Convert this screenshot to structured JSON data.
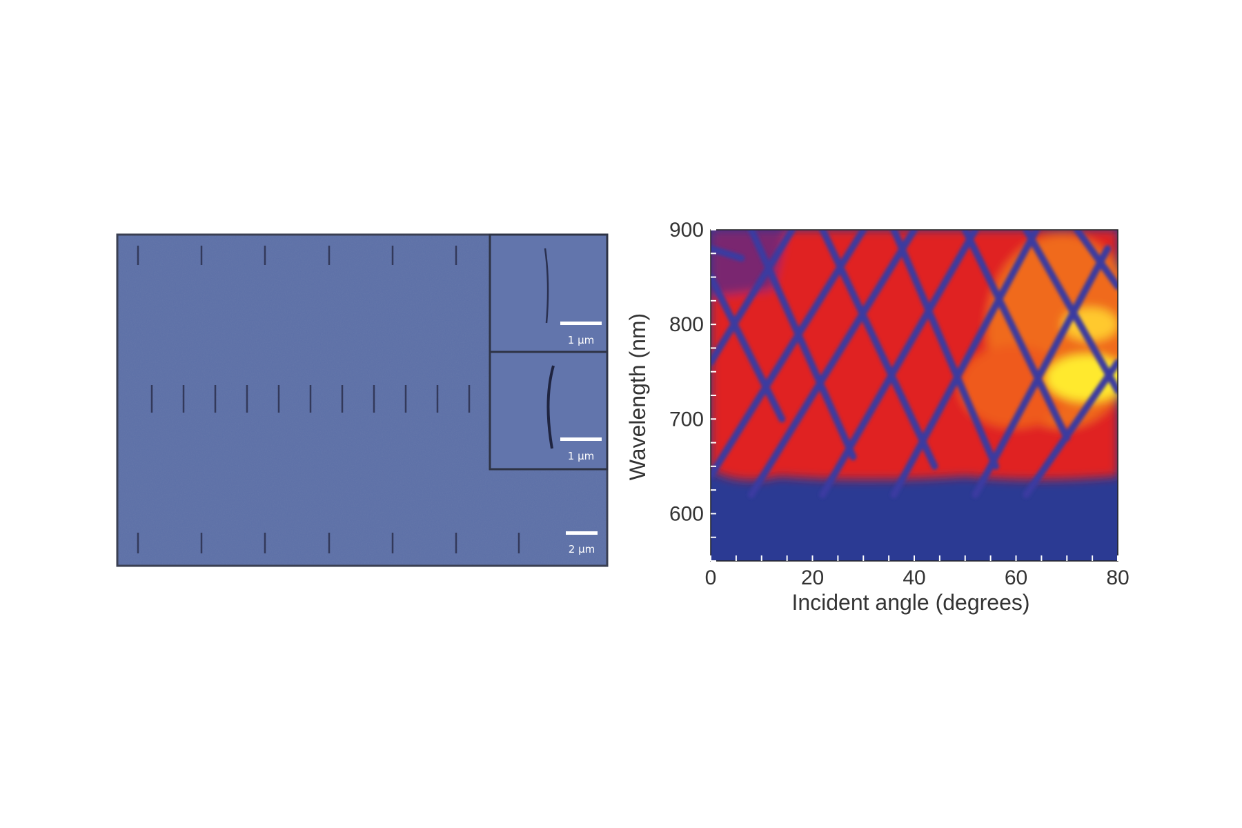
{
  "panel_a": {
    "scale_bars": [
      {
        "label": "1 μm"
      },
      {
        "label": "1 μm"
      },
      {
        "label": "2 μm"
      }
    ]
  },
  "chart_data": {
    "type": "heatmap",
    "title": "",
    "xlabel": "Incident angle (degrees)",
    "ylabel": "Wavelength (nm)",
    "xlim": [
      0,
      80
    ],
    "ylim": [
      550,
      900
    ],
    "x_ticks": [
      "0",
      "20",
      "40",
      "60",
      "80"
    ],
    "y_ticks": [
      "600",
      "700",
      "800",
      "900"
    ],
    "x_tick_values": [
      0,
      20,
      40,
      60,
      80
    ],
    "y_tick_values": [
      600,
      700,
      800,
      900
    ],
    "colormap": [
      "#2b3a93",
      "#e51f22",
      "#ffe92e"
    ],
    "grid": false,
    "legend": "none"
  }
}
